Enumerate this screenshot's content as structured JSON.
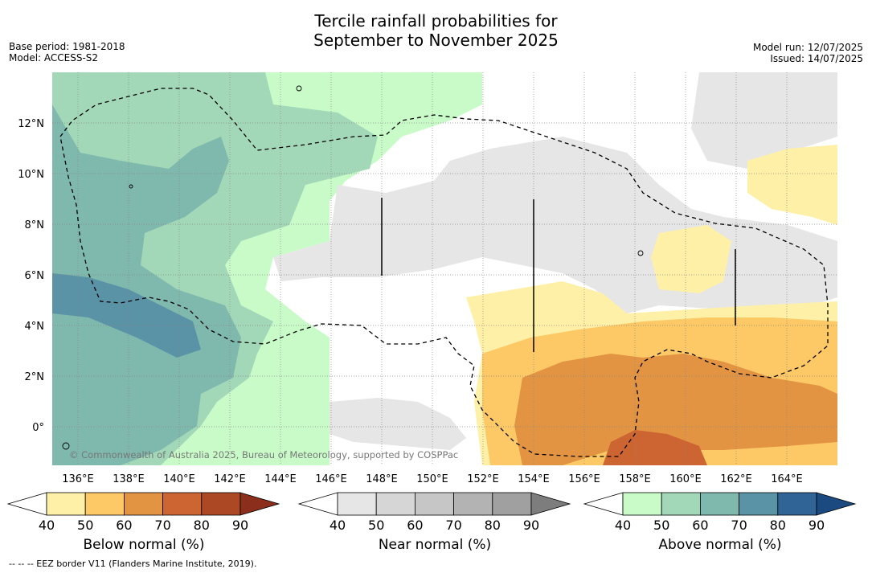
{
  "header": {
    "title_line1": "Tercile rainfall probabilities for",
    "title_line2": "September to November 2025",
    "base_period": "Base period: 1981-2018",
    "model": "Model: ACCESS-S2",
    "model_run": "Model run: 12/07/2025",
    "issued": "Issued: 14/07/2025"
  },
  "map": {
    "lat_labels": [
      "12°N",
      "10°N",
      "8°N",
      "6°N",
      "4°N",
      "2°N",
      "0°"
    ],
    "lon_labels": [
      "136°E",
      "138°E",
      "140°E",
      "142°E",
      "144°E",
      "146°E",
      "148°E",
      "150°E",
      "152°E",
      "154°E",
      "156°E",
      "158°E",
      "160°E",
      "162°E",
      "164°E"
    ],
    "copyright": "© Commonwealth of Australia 2025, Bureau of Meteorology, supported by COSPPac"
  },
  "colorbars": [
    {
      "label": "Below normal (%)",
      "ticks": [
        "40",
        "50",
        "60",
        "70",
        "80",
        "90"
      ],
      "colors": [
        "#fff0a8",
        "#fdc966",
        "#e29442",
        "#cc6531",
        "#ac4824",
        "#8b2e1b"
      ]
    },
    {
      "label": "Near normal (%)",
      "ticks": [
        "40",
        "50",
        "60",
        "70",
        "80",
        "90"
      ],
      "colors": [
        "#e6e6e6",
        "#d6d6d6",
        "#c6c6c6",
        "#b3b3b3",
        "#a0a0a0",
        "#7d7d7d"
      ]
    },
    {
      "label": "Above normal (%)",
      "ticks": [
        "40",
        "50",
        "60",
        "70",
        "80",
        "90"
      ],
      "colors": [
        "#c9fbc9",
        "#a2d8b7",
        "#7fb8ad",
        "#5a93a6",
        "#316496",
        "#1a4a80"
      ]
    }
  ],
  "footnote": "--  --  -- EEZ border V11 (Flanders Marine Institute, 2019)."
}
